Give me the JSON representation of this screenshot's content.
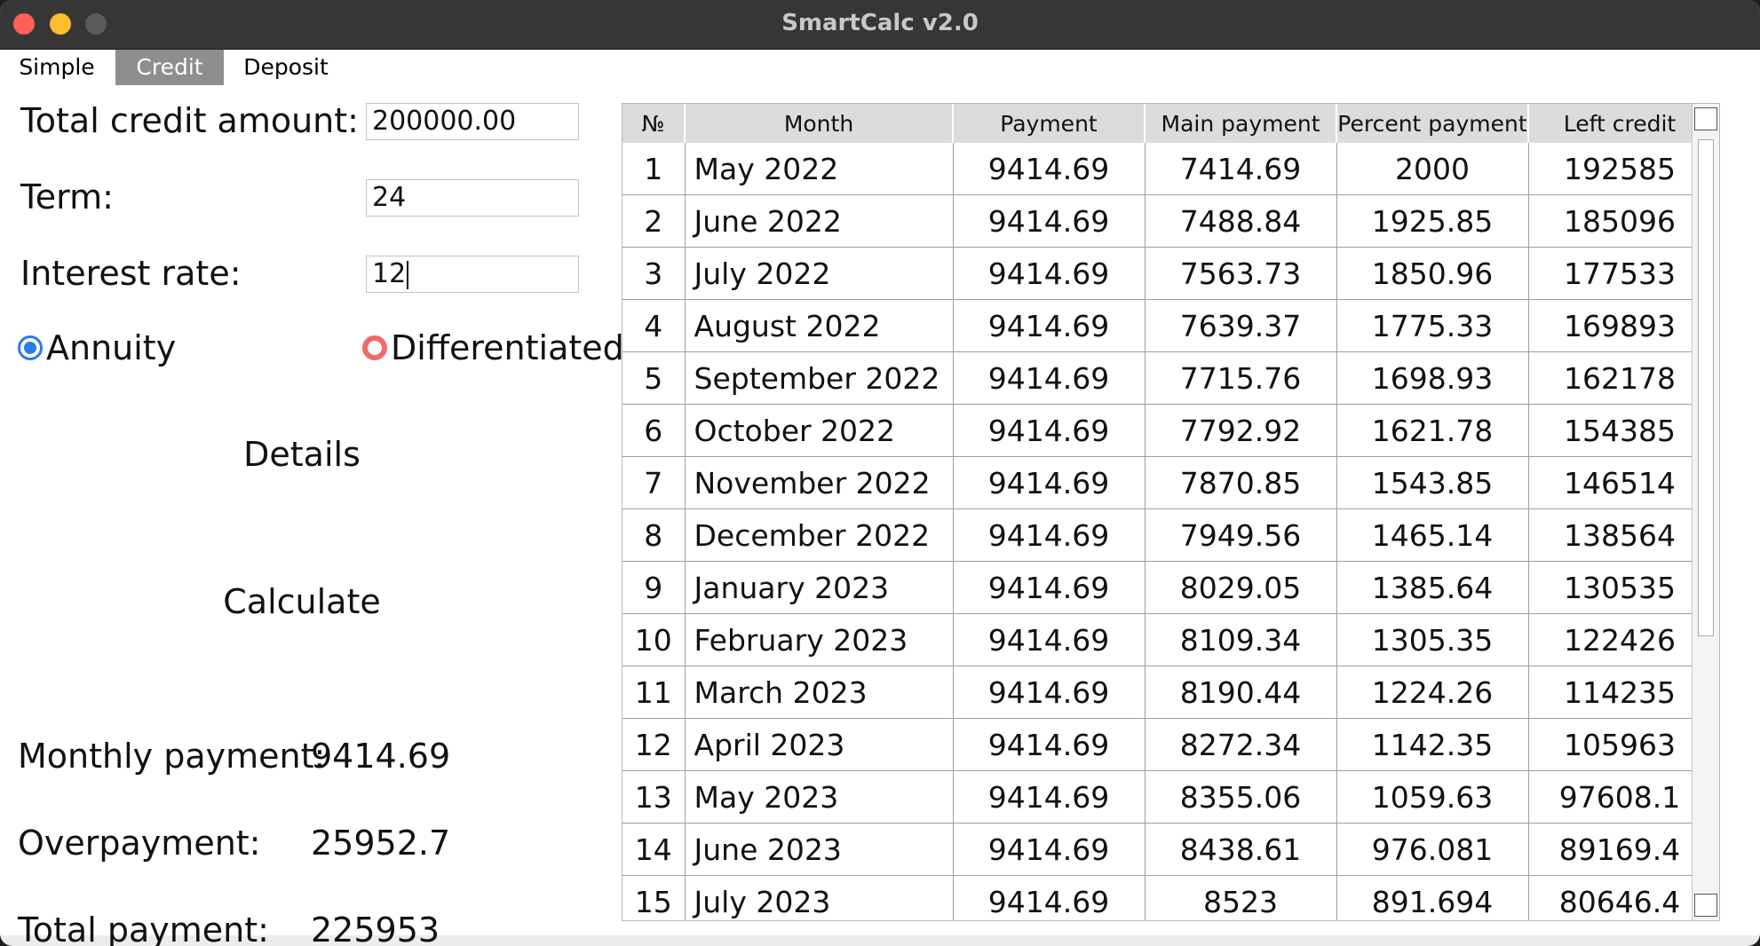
{
  "window": {
    "title": "SmartCalc v2.0"
  },
  "tabs": [
    {
      "label": "Simple",
      "active": false
    },
    {
      "label": "Credit",
      "active": true
    },
    {
      "label": "Deposit",
      "active": false
    }
  ],
  "form": {
    "amount_label": "Total credit amount:",
    "amount_value": "200000.00",
    "term_label": "Term:",
    "term_value": "24",
    "rate_label": "Interest rate:",
    "rate_value": "12",
    "radio_annuity": "Annuity",
    "radio_differentiated": "Differentiated",
    "selected_type": "Annuity"
  },
  "buttons": {
    "details": "Details",
    "calculate": "Calculate"
  },
  "results": {
    "monthly_label": "Monthly payment:",
    "monthly_value": "9414.69",
    "overpayment_label": "Overpayment:",
    "overpayment_value": "25952.7",
    "total_label": "Total payment:",
    "total_value": "225953"
  },
  "table": {
    "columns": [
      "№",
      "Month",
      "Payment",
      "Main payment",
      "Percent payment",
      "Left credit"
    ],
    "rows": [
      [
        "1",
        "May 2022",
        "9414.69",
        "7414.69",
        "2000",
        "192585"
      ],
      [
        "2",
        "June 2022",
        "9414.69",
        "7488.84",
        "1925.85",
        "185096"
      ],
      [
        "3",
        "July 2022",
        "9414.69",
        "7563.73",
        "1850.96",
        "177533"
      ],
      [
        "4",
        "August 2022",
        "9414.69",
        "7639.37",
        "1775.33",
        "169893"
      ],
      [
        "5",
        "September 2022",
        "9414.69",
        "7715.76",
        "1698.93",
        "162178"
      ],
      [
        "6",
        "October 2022",
        "9414.69",
        "7792.92",
        "1621.78",
        "154385"
      ],
      [
        "7",
        "November 2022",
        "9414.69",
        "7870.85",
        "1543.85",
        "146514"
      ],
      [
        "8",
        "December 2022",
        "9414.69",
        "7949.56",
        "1465.14",
        "138564"
      ],
      [
        "9",
        "January 2023",
        "9414.69",
        "8029.05",
        "1385.64",
        "130535"
      ],
      [
        "10",
        "February 2023",
        "9414.69",
        "8109.34",
        "1305.35",
        "122426"
      ],
      [
        "11",
        "March 2023",
        "9414.69",
        "8190.44",
        "1224.26",
        "114235"
      ],
      [
        "12",
        "April 2023",
        "9414.69",
        "8272.34",
        "1142.35",
        "105963"
      ],
      [
        "13",
        "May 2023",
        "9414.69",
        "8355.06",
        "1059.63",
        "97608.1"
      ],
      [
        "14",
        "June 2023",
        "9414.69",
        "8438.61",
        "976.081",
        "89169.4"
      ],
      [
        "15",
        "July 2023",
        "9414.69",
        "8523",
        "891.694",
        "80646.4"
      ]
    ]
  }
}
